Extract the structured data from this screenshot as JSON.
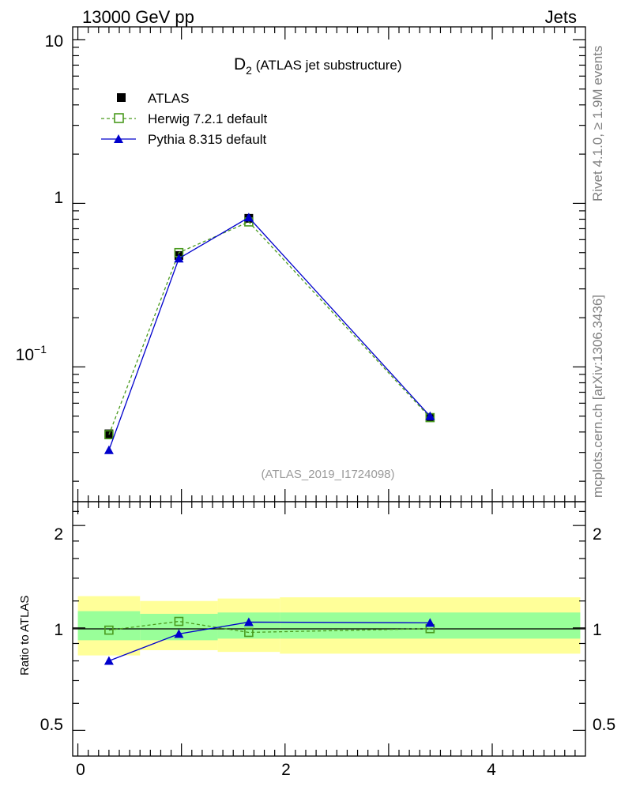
{
  "header": {
    "left": "13000 GeV pp",
    "right": "Jets"
  },
  "side_labels": {
    "rivet": "Rivet 4.1.0, ≥ 1.9M events",
    "mcplots": "mcplots.cern.ch [arXiv:1306.3436]"
  },
  "chart_data": [
    {
      "type": "scatter",
      "panel": "main",
      "title_main": "D",
      "title_sub": "2",
      "title_rest": " (ATLAS jet substructure)",
      "analysis_id": "(ATLAS_2019_I1724098)",
      "yscale": "log",
      "ylim": [
        0.015,
        12
      ],
      "xlim": [
        -0.05,
        4.9
      ],
      "ytick_labels": [
        "10",
        "1"
      ],
      "ytick_minus1": {
        "base": "10",
        "exp": "−1"
      },
      "legend": [
        "ATLAS",
        "Herwig 7.2.1 default",
        "Pythia 8.315 default"
      ],
      "series": [
        {
          "name": "ATLAS",
          "color": "#000000",
          "marker": "square-filled",
          "x": [
            0.3,
            0.975,
            1.65,
            3.4
          ],
          "y": [
            0.039,
            0.48,
            0.81,
            0.049
          ]
        },
        {
          "name": "Herwig 7.2.1 default",
          "color": "#4a9a1e",
          "marker": "square-open",
          "line": "dashed",
          "x": [
            0.3,
            0.975,
            1.65,
            3.4
          ],
          "y": [
            0.0385,
            0.5,
            0.77,
            0.049
          ]
        },
        {
          "name": "Pythia 8.315 default",
          "color": "#0000cc",
          "marker": "triangle",
          "line": "solid",
          "x": [
            0.3,
            0.975,
            1.65,
            3.4
          ],
          "y": [
            0.031,
            0.46,
            0.82,
            0.05
          ]
        }
      ]
    },
    {
      "type": "scatter",
      "panel": "ratio",
      "ylabel": "Ratio to ATLAS",
      "yscale": "log",
      "ylim": [
        0.42,
        2.35
      ],
      "xlim": [
        -0.05,
        4.9
      ],
      "xtick_labels": [
        "0",
        "2",
        "4"
      ],
      "ytick_labels": [
        "0.5",
        "1",
        "2"
      ],
      "bin_edges": [
        0,
        0.6,
        1.35,
        1.95,
        4.85
      ],
      "band_outer": {
        "color": "#ffff99",
        "lo": [
          0.83,
          0.86,
          0.85,
          0.84
        ],
        "hi": [
          1.24,
          1.2,
          1.22,
          1.23
        ]
      },
      "band_inner": {
        "color": "#99ff99",
        "lo": [
          0.92,
          0.92,
          0.93,
          0.93
        ],
        "hi": [
          1.12,
          1.1,
          1.11,
          1.11
        ]
      },
      "series": [
        {
          "name": "Herwig 7.2.1 default",
          "color": "#4a9a1e",
          "marker": "square-open",
          "line": "dashed",
          "x": [
            0.3,
            0.975,
            1.65,
            3.4
          ],
          "y": [
            0.985,
            1.045,
            0.97,
            0.995
          ]
        },
        {
          "name": "Pythia 8.315 default",
          "color": "#0000cc",
          "marker": "triangle",
          "line": "solid",
          "x": [
            0.3,
            0.975,
            1.65,
            3.4
          ],
          "y": [
            0.8,
            0.96,
            1.04,
            1.035
          ]
        }
      ]
    }
  ]
}
